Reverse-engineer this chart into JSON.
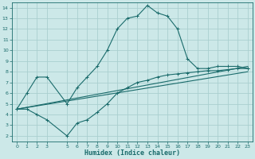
{
  "xlabel": "Humidex (Indice chaleur)",
  "bg_color": "#cce8e8",
  "grid_color": "#aacfcf",
  "line_color": "#1a6b6b",
  "xlim": [
    -0.5,
    23.5
  ],
  "ylim": [
    1.5,
    14.5
  ],
  "xticks": [
    0,
    1,
    2,
    3,
    5,
    6,
    7,
    8,
    9,
    10,
    11,
    12,
    13,
    14,
    15,
    16,
    17,
    18,
    19,
    20,
    21,
    22,
    23
  ],
  "yticks": [
    2,
    3,
    4,
    5,
    6,
    7,
    8,
    9,
    10,
    11,
    12,
    13,
    14
  ],
  "line1_x": [
    0,
    1,
    2,
    3,
    5,
    6,
    7,
    8,
    9,
    10,
    11,
    12,
    13,
    14,
    15,
    16,
    17,
    18,
    19,
    20,
    21,
    22,
    23
  ],
  "line1_y": [
    4.5,
    6.0,
    7.5,
    7.5,
    5.0,
    6.5,
    7.5,
    8.5,
    10.0,
    12.0,
    13.0,
    13.2,
    14.2,
    13.5,
    13.2,
    12.0,
    9.2,
    8.3,
    8.3,
    8.5,
    8.5,
    8.5,
    8.3
  ],
  "line2_x": [
    0,
    23
  ],
  "line2_y": [
    4.5,
    8.5
  ],
  "line3_x": [
    0,
    23
  ],
  "line3_y": [
    4.5,
    8.0
  ],
  "line4_x": [
    0,
    1,
    2,
    3,
    5,
    6,
    7,
    8,
    9,
    10,
    11,
    12,
    13,
    14,
    15,
    16,
    17,
    18,
    19,
    20,
    21,
    22,
    23
  ],
  "line4_y": [
    4.5,
    4.5,
    4.0,
    3.5,
    2.0,
    3.2,
    3.5,
    4.2,
    5.0,
    6.0,
    6.5,
    7.0,
    7.2,
    7.5,
    7.7,
    7.8,
    7.9,
    8.0,
    8.1,
    8.1,
    8.2,
    8.3,
    8.3
  ]
}
